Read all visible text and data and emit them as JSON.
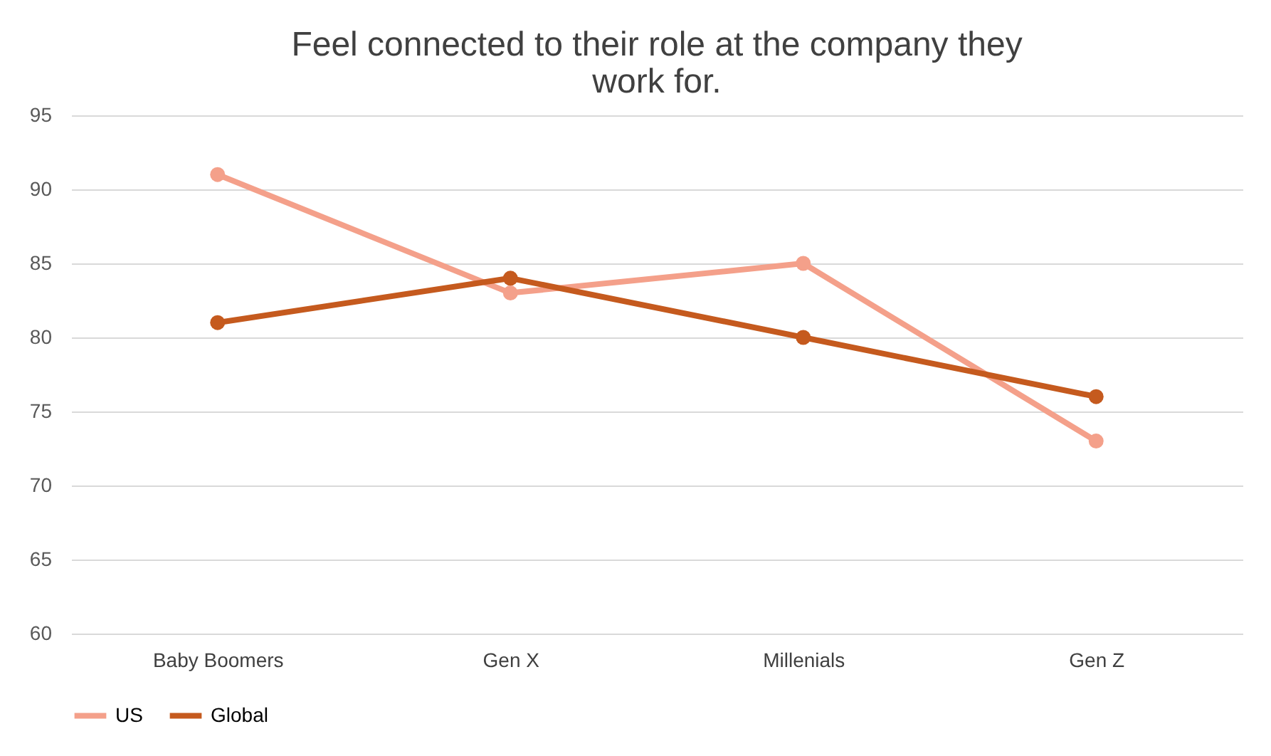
{
  "chart_data": {
    "type": "line",
    "title": "Feel connected to their role at the company they work for.",
    "categories": [
      "Baby Boomers",
      "Gen X",
      "Millenials",
      "Gen Z"
    ],
    "series": [
      {
        "name": "US",
        "color": "#f4a08a",
        "values": [
          91,
          83,
          85,
          73
        ]
      },
      {
        "name": "Global",
        "color": "#c55a1e",
        "values": [
          81,
          84,
          80,
          76
        ]
      }
    ],
    "ylim": [
      60,
      95
    ],
    "yticks": [
      60,
      65,
      70,
      75,
      80,
      85,
      90,
      95
    ],
    "grid": "y",
    "legend": "bottom",
    "marker": "circle",
    "line_style": "solid"
  }
}
